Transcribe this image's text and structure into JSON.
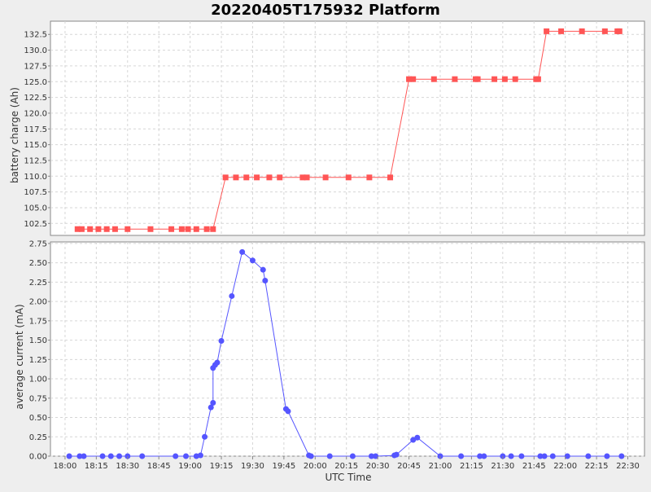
{
  "chart_data": {
    "title": "20220405T175932 Platform",
    "xlabel": "UTC Time",
    "x_ticks": [
      "18:00",
      "18:15",
      "18:30",
      "18:45",
      "19:00",
      "19:15",
      "19:30",
      "19:45",
      "20:00",
      "20:15",
      "20:30",
      "20:45",
      "21:00",
      "21:15",
      "21:30",
      "21:45",
      "22:00",
      "22:15",
      "22:30"
    ],
    "x_range": [
      "17:53",
      "22:38"
    ],
    "grid": true,
    "panels": [
      {
        "type": "line",
        "ylabel": "battery charge (Ah)",
        "ylim": [
          100.6,
          134.6
        ],
        "y_ticks": [
          "102.5",
          "105.0",
          "107.5",
          "110.0",
          "112.5",
          "115.0",
          "117.5",
          "120.0",
          "122.5",
          "125.0",
          "127.5",
          "130.0",
          "132.5"
        ],
        "marker": "square",
        "color": "#ff5555",
        "series": [
          {
            "x": [
              "18:06",
              "18:08",
              "18:12",
              "18:16",
              "18:20",
              "18:24",
              "18:30",
              "18:41",
              "18:51",
              "18:56",
              "18:59",
              "19:03",
              "19:08",
              "19:11",
              "19:17",
              "19:22",
              "19:27",
              "19:32",
              "19:38",
              "19:43",
              "19:54",
              "19:56",
              "20:05",
              "20:16",
              "20:26",
              "20:36",
              "20:45",
              "20:47",
              "20:57",
              "21:07",
              "21:17",
              "21:18",
              "21:26",
              "21:31",
              "21:36",
              "21:46",
              "21:47",
              "21:51",
              "21:58",
              "22:08",
              "22:19",
              "22:25",
              "22:26"
            ],
            "y": [
              101.6,
              101.6,
              101.6,
              101.6,
              101.6,
              101.6,
              101.6,
              101.6,
              101.6,
              101.6,
              101.6,
              101.6,
              101.6,
              101.6,
              109.8,
              109.8,
              109.8,
              109.8,
              109.8,
              109.8,
              109.8,
              109.8,
              109.8,
              109.8,
              109.8,
              109.8,
              125.4,
              125.4,
              125.4,
              125.4,
              125.4,
              125.4,
              125.4,
              125.4,
              125.4,
              125.4,
              125.4,
              133.0,
              133.0,
              133.0,
              133.0,
              133.0,
              133.0
            ]
          }
        ]
      },
      {
        "type": "line",
        "ylabel": "average current (mA)",
        "ylim": [
          0.0,
          2.77
        ],
        "y_ticks": [
          "0.00",
          "0.25",
          "0.50",
          "0.75",
          "1.00",
          "1.25",
          "1.50",
          "1.75",
          "2.00",
          "2.25",
          "2.50",
          "2.75"
        ],
        "marker": "circle",
        "color": "#5555ff",
        "series": [
          {
            "x": [
              "18:02",
              "18:07",
              "18:09",
              "18:18",
              "18:22",
              "18:26",
              "18:30",
              "18:37",
              "18:53",
              "18:58",
              "19:03",
              "19:05",
              "19:07",
              "19:10",
              "19:11",
              "19:11",
              "19:12",
              "19:13",
              "19:15",
              "19:20",
              "19:25",
              "19:30",
              "19:35",
              "19:36",
              "19:46",
              "19:47",
              "19:57",
              "19:58",
              "20:07",
              "20:18",
              "20:27",
              "20:29",
              "20:38",
              "20:39",
              "20:47",
              "20:49",
              "21:00",
              "21:10",
              "21:19",
              "21:21",
              "21:30",
              "21:34",
              "21:39",
              "21:48",
              "21:50",
              "21:54",
              "22:01",
              "22:11",
              "22:20",
              "22:27"
            ],
            "y": [
              0.0,
              0.0,
              0.0,
              0.0,
              0.0,
              0.0,
              0.0,
              0.0,
              0.0,
              0.0,
              0.0,
              0.01,
              0.25,
              0.63,
              0.69,
              1.14,
              1.18,
              1.21,
              1.49,
              2.07,
              2.64,
              2.53,
              2.41,
              2.27,
              0.61,
              0.58,
              0.01,
              0.0,
              0.0,
              0.0,
              0.0,
              0.0,
              0.01,
              0.02,
              0.21,
              0.24,
              0.0,
              0.0,
              0.0,
              0.0,
              0.0,
              0.0,
              0.0,
              0.0,
              0.0,
              0.0,
              0.0,
              0.0,
              0.0,
              0.0
            ]
          }
        ]
      }
    ]
  }
}
